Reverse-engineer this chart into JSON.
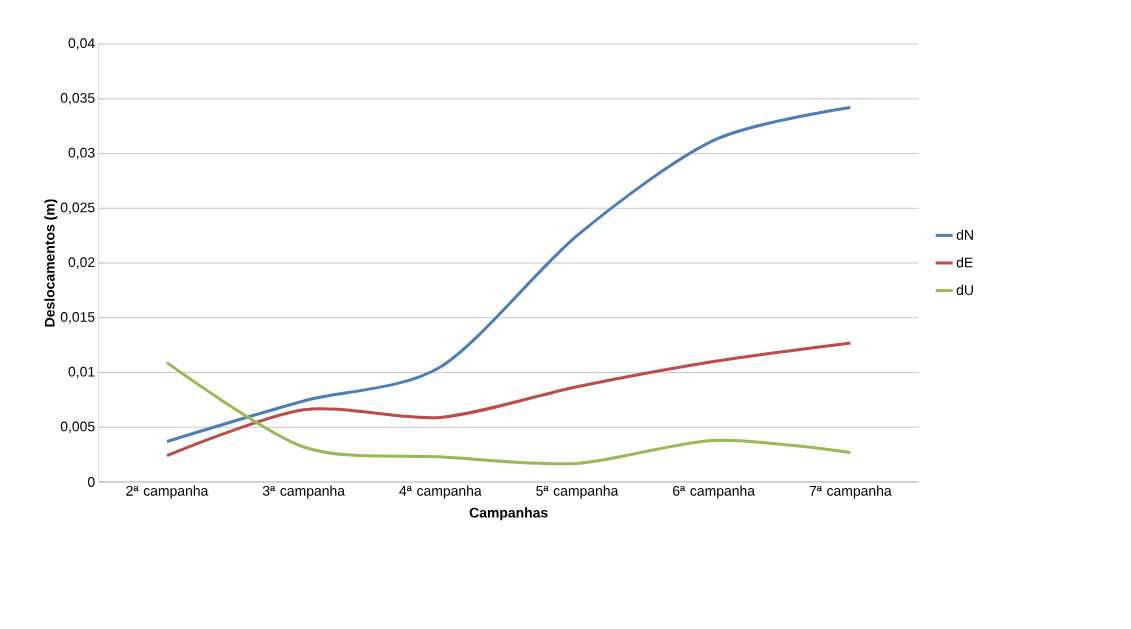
{
  "chart_data": {
    "type": "line",
    "xlabel": "Campanhas",
    "ylabel": "Deslocamentos (m)",
    "categories": [
      "2ª campanha",
      "3ª campanha",
      "4ª campanha",
      "5ª campanha",
      "6ª campanha",
      "7ª campanha"
    ],
    "series": [
      {
        "name": "dN",
        "color": "#4a7ebb",
        "values": [
          0.0037,
          0.0074,
          0.0105,
          0.0225,
          0.0312,
          0.0342
        ]
      },
      {
        "name": "dE",
        "color": "#be4b48",
        "values": [
          0.0024,
          0.0066,
          0.0059,
          0.0087,
          0.011,
          0.0127
        ]
      },
      {
        "name": "dU",
        "color": "#98b954",
        "values": [
          0.0109,
          0.0032,
          0.0023,
          0.0017,
          0.0038,
          0.0027
        ]
      }
    ],
    "ylim": [
      0,
      0.04
    ],
    "yticks": [
      0,
      {
        "value": 0.005,
        "label": "0,005"
      },
      {
        "value": 0.01,
        "label": "0,01"
      },
      {
        "value": 0.015,
        "label": "0,015"
      },
      {
        "value": 0.02,
        "label": "0,02"
      },
      {
        "value": 0.025,
        "label": "0,025"
      },
      {
        "value": 0.03,
        "label": "0,03"
      },
      {
        "value": 0.035,
        "label": "0,035"
      },
      {
        "value": 0.04,
        "label": "0,04"
      }
    ],
    "grid": "y",
    "legend": "right",
    "marker": "none",
    "line_style": "solid"
  }
}
